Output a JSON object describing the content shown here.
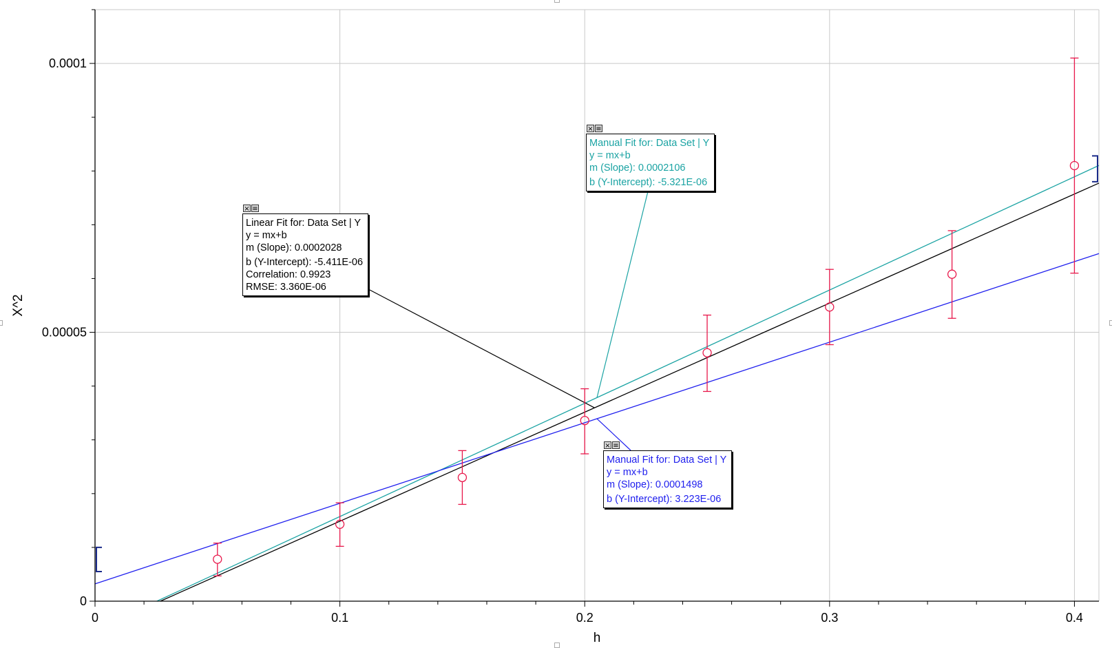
{
  "chart_data": {
    "type": "scatter",
    "xlabel": "h",
    "ylabel": "X^2",
    "xlim": [
      0,
      0.41
    ],
    "ylim": [
      0,
      0.00011
    ],
    "grid": true,
    "x_ticks": [
      {
        "value": 0,
        "label": "0"
      },
      {
        "value": 0.1,
        "label": "0.1"
      },
      {
        "value": 0.2,
        "label": "0.2"
      },
      {
        "value": 0.3,
        "label": "0.3"
      },
      {
        "value": 0.4,
        "label": "0.4"
      }
    ],
    "y_ticks": [
      {
        "value": 0,
        "label": "0"
      },
      {
        "value": 5e-05,
        "label": "0.00005"
      },
      {
        "value": 0.0001,
        "label": "0.0001"
      }
    ],
    "series": [
      {
        "marker": "circle",
        "color": "#e8174a",
        "x": [
          0.05,
          0.1,
          0.15,
          0.2,
          0.25,
          0.3,
          0.35,
          0.4
        ],
        "y": [
          7.8e-06,
          1.43e-05,
          2.3e-05,
          3.36e-05,
          4.62e-05,
          5.47e-05,
          6.08e-05,
          8.1e-05
        ],
        "y_err_low": [
          3.1e-06,
          4.1e-06,
          5e-06,
          6.2e-06,
          7.2e-06,
          7e-06,
          8.2e-06,
          2e-05
        ],
        "y_err_high": [
          3e-06,
          4e-06,
          5e-06,
          5.9e-06,
          7e-06,
          7e-06,
          8.1e-06,
          2e-05
        ]
      }
    ],
    "fit_lines": [
      {
        "color": "#000000",
        "slope": 0.0002028,
        "intercept": -5.411e-06
      },
      {
        "color": "#1aa3a3",
        "slope": 0.0002106,
        "intercept": -5.321e-06
      },
      {
        "color": "#2020ee",
        "slope": 0.0001498,
        "intercept": 3.223e-06
      }
    ],
    "annotations": [
      {
        "color": "#000000",
        "anchor_x": 0.204,
        "lines": [
          "Linear Fit for: Data Set | Y",
          "y = mx+b",
          "m (Slope): 0.0002028",
          "b (Y-Intercept): -5.411E-06",
          "Correlation: 0.9923",
          "RMSE: 3.360E-06"
        ]
      },
      {
        "color": "#1aa3a3",
        "anchor_x": 0.205,
        "lines": [
          "Manual Fit for: Data Set | Y",
          "y = mx+b",
          "m (Slope): 0.0002106",
          "b (Y-Intercept): -5.321E-06"
        ]
      },
      {
        "color": "#2020ee",
        "anchor_x": 0.205,
        "lines": [
          "Manual Fit for: Data Set | Y",
          "y = mx+b",
          "m (Slope): 0.0001498",
          "b (Y-Intercept): 3.223E-06"
        ]
      }
    ],
    "range_brackets": [
      {
        "side": "left",
        "color": "#1a2a8a",
        "y_range": [
          5.5e-06,
          1e-05
        ]
      },
      {
        "side": "right",
        "color": "#1a2a8a",
        "y_range": [
          7.8e-05,
          8.28e-05
        ]
      }
    ]
  },
  "icons": {
    "close": "close-icon",
    "menu": "menu-icon"
  },
  "colors": {
    "grid": "#c8c8c8",
    "axis": "#000000",
    "background": "#ffffff"
  }
}
